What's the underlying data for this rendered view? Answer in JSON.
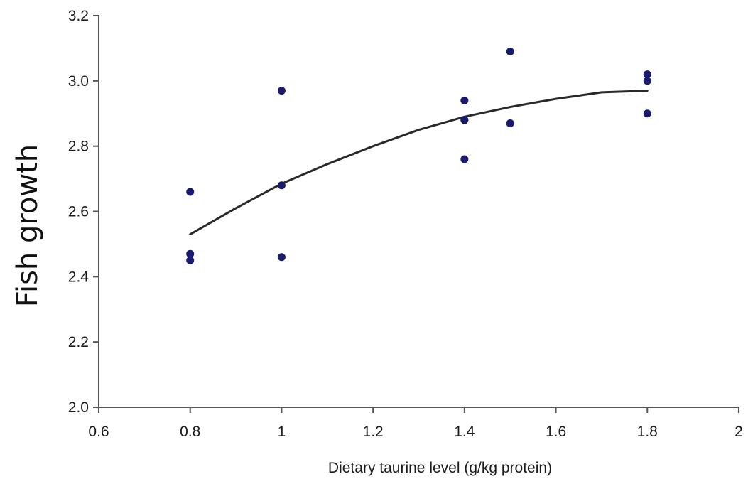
{
  "chart_data": {
    "type": "scatter",
    "title": "",
    "xlabel": "Dietary taurine level (g/kg protein)",
    "ylabel": "Fish growth",
    "xlim": [
      0.6,
      2.0
    ],
    "ylim": [
      2.0,
      3.2
    ],
    "x_ticks": [
      "0.6",
      "0.8",
      "1",
      "1.2",
      "1.4",
      "1.6",
      "1.8",
      "2"
    ],
    "x_tick_values": [
      0.6,
      0.8,
      1.0,
      1.2,
      1.4,
      1.6,
      1.8,
      2.0
    ],
    "y_ticks": [
      "2.0",
      "2.2",
      "2.4",
      "2.6",
      "2.8",
      "3.0",
      "3.2"
    ],
    "y_tick_values": [
      2.0,
      2.2,
      2.4,
      2.6,
      2.8,
      3.0,
      3.2
    ],
    "grid": false,
    "legend": "none",
    "point_color": "#1a1a6e",
    "line_color": "#2a2a2a",
    "points": [
      {
        "x": 0.8,
        "y": 2.66
      },
      {
        "x": 0.8,
        "y": 2.47
      },
      {
        "x": 0.8,
        "y": 2.45
      },
      {
        "x": 1.0,
        "y": 2.97
      },
      {
        "x": 1.0,
        "y": 2.68
      },
      {
        "x": 1.0,
        "y": 2.46
      },
      {
        "x": 1.4,
        "y": 2.94
      },
      {
        "x": 1.4,
        "y": 2.88
      },
      {
        "x": 1.4,
        "y": 2.88
      },
      {
        "x": 1.4,
        "y": 2.76
      },
      {
        "x": 1.5,
        "y": 3.09
      },
      {
        "x": 1.5,
        "y": 2.87
      },
      {
        "x": 1.5,
        "y": 2.87
      },
      {
        "x": 1.8,
        "y": 3.02
      },
      {
        "x": 1.8,
        "y": 3.0
      },
      {
        "x": 1.8,
        "y": 2.9
      }
    ],
    "trendline": {
      "type": "quadratic",
      "x": [
        0.8,
        0.9,
        1.0,
        1.1,
        1.2,
        1.3,
        1.4,
        1.5,
        1.6,
        1.7,
        1.8
      ],
      "y": [
        2.53,
        2.61,
        2.685,
        2.745,
        2.8,
        2.85,
        2.89,
        2.92,
        2.945,
        2.965,
        2.97
      ]
    }
  }
}
